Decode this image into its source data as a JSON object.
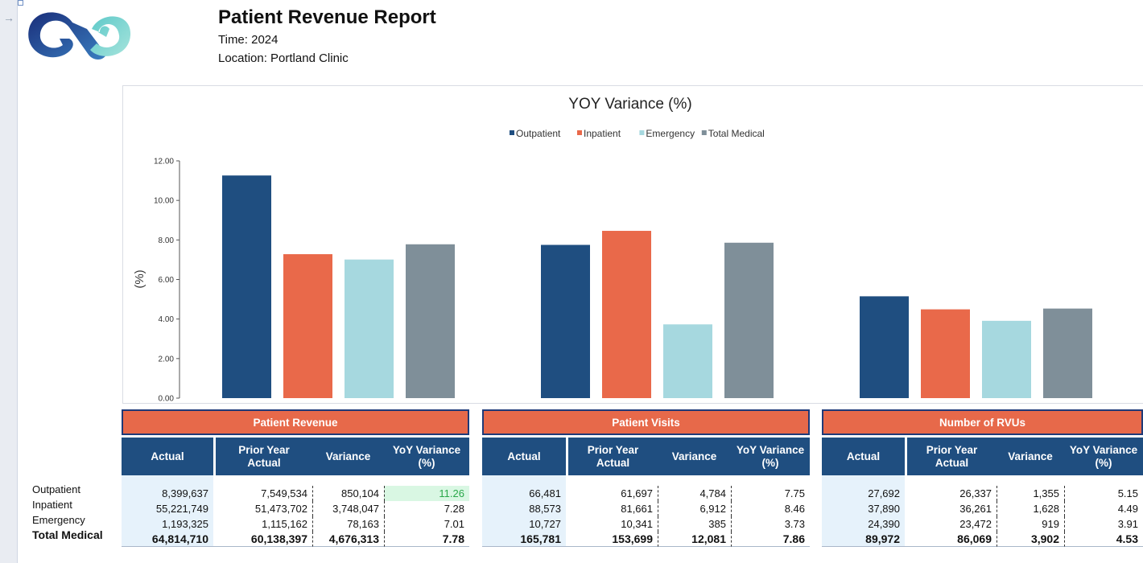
{
  "report": {
    "title": "Patient Revenue Report",
    "time": "Time: 2024",
    "location": "Location: Portland Clinic"
  },
  "colors": {
    "outpatient": "#1f4e80",
    "inpatient": "#e9694a",
    "emergency": "#a6d8df",
    "total_medical": "#7f8f99",
    "group_header": "#e7694a",
    "col_header": "#1f4e80",
    "highlight": "#d9f7e3"
  },
  "chart_data": {
    "type": "bar",
    "title": "YOY Variance (%)",
    "ylabel": "(%)",
    "xlabel": "",
    "ylim": [
      0,
      12
    ],
    "yticks": [
      "0.00",
      "2.00",
      "4.00",
      "6.00",
      "8.00",
      "10.00",
      "12.00"
    ],
    "legend_position": "top",
    "categories": [
      "Patient Revenue",
      "Patient Visits",
      "Number of RVUs"
    ],
    "series": [
      {
        "name": "Outpatient",
        "values": [
          11.26,
          7.75,
          5.15
        ]
      },
      {
        "name": "Inpatient",
        "values": [
          7.28,
          8.46,
          4.49
        ]
      },
      {
        "name": "Emergency",
        "values": [
          7.01,
          3.73,
          3.91
        ]
      },
      {
        "name": "Total Medical",
        "values": [
          7.78,
          7.86,
          4.53
        ]
      }
    ]
  },
  "row_labels": [
    "Outpatient",
    "Inpatient",
    "Emergency",
    "Total Medical"
  ],
  "col_headers": {
    "actual": "Actual",
    "prior_l1": "Prior Year",
    "prior_l2": "Actual",
    "variance": "Variance",
    "yoy_l1": "YoY Variance",
    "yoy_l2": "(%)"
  },
  "tables": {
    "revenue": {
      "title": "Patient Revenue",
      "rows": [
        {
          "actual": "8,399,637",
          "prior": "7,549,534",
          "variance": "850,104",
          "yoy": "11.26"
        },
        {
          "actual": "55,221,749",
          "prior": "51,473,702",
          "variance": "3,748,047",
          "yoy": "7.28"
        },
        {
          "actual": "1,193,325",
          "prior": "1,115,162",
          "variance": "78,163",
          "yoy": "7.01"
        },
        {
          "actual": "64,814,710",
          "prior": "60,138,397",
          "variance": "4,676,313",
          "yoy": "7.78"
        }
      ]
    },
    "visits": {
      "title": "Patient Visits",
      "rows": [
        {
          "actual": "66,481",
          "prior": "61,697",
          "variance": "4,784",
          "yoy": "7.75"
        },
        {
          "actual": "88,573",
          "prior": "81,661",
          "variance": "6,912",
          "yoy": "8.46"
        },
        {
          "actual": "10,727",
          "prior": "10,341",
          "variance": "385",
          "yoy": "3.73"
        },
        {
          "actual": "165,781",
          "prior": "153,699",
          "variance": "12,081",
          "yoy": "7.86"
        }
      ]
    },
    "rvus": {
      "title": "Number of RVUs",
      "rows": [
        {
          "actual": "27,692",
          "prior": "26,337",
          "variance": "1,355",
          "yoy": "5.15"
        },
        {
          "actual": "37,890",
          "prior": "36,261",
          "variance": "1,628",
          "yoy": "4.49"
        },
        {
          "actual": "24,390",
          "prior": "23,472",
          "variance": "919",
          "yoy": "3.91"
        },
        {
          "actual": "89,972",
          "prior": "86,069",
          "variance": "3,902",
          "yoy": "4.53"
        }
      ]
    }
  }
}
